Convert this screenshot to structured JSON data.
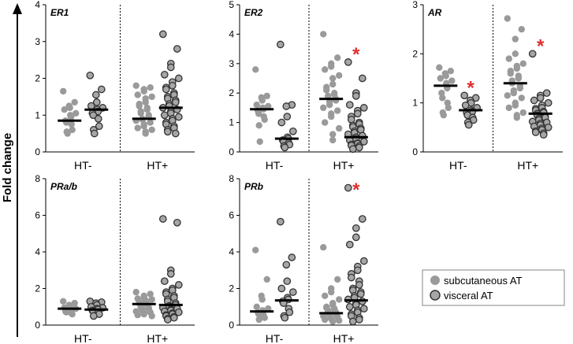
{
  "y_axis_title": "Fold change",
  "colors": {
    "subcutaneous_fill": "#9a9a9a",
    "visceral_fill": "#a6a6a6",
    "visceral_stroke": "#333333",
    "median": "#000000",
    "star": "#e03030"
  },
  "legend": [
    {
      "label": "subcutaneous AT",
      "kind": "subcutaneous"
    },
    {
      "label": "visceral AT",
      "kind": "visceral"
    }
  ],
  "chart_data": [
    {
      "type": "scatter",
      "title": "ER1",
      "ylim": [
        0,
        4
      ],
      "yticks": [
        0,
        1,
        2,
        3,
        4
      ],
      "groups": [
        "HT-",
        "HT+"
      ],
      "series": [
        {
          "group": "HT-",
          "tissue": "subcutaneous",
          "median": 0.85,
          "significant": false,
          "values": [
            1.65,
            1.35,
            1.25,
            1.2,
            1.15,
            1.05,
            1.0,
            0.95,
            0.85,
            0.8,
            0.75,
            0.6,
            0.55,
            0.5
          ]
        },
        {
          "group": "HT-",
          "tissue": "visceral",
          "median": 1.15,
          "significant": false,
          "values": [
            2.08,
            1.7,
            1.55,
            1.35,
            1.25,
            1.2,
            1.15,
            1.1,
            1.05,
            1.0,
            0.9,
            0.7,
            0.6,
            0.5
          ]
        },
        {
          "group": "HT+",
          "tissue": "subcutaneous",
          "median": 0.9,
          "significant": false,
          "values": [
            1.8,
            1.75,
            1.7,
            1.65,
            1.55,
            1.5,
            1.45,
            1.35,
            1.3,
            1.25,
            1.2,
            1.15,
            1.1,
            1.05,
            1.0,
            0.95,
            0.9,
            0.88,
            0.85,
            0.8,
            0.75,
            0.7,
            0.65,
            0.6,
            0.55,
            0.5
          ]
        },
        {
          "group": "HT+",
          "tissue": "visceral",
          "median": 1.2,
          "significant": false,
          "values": [
            3.2,
            2.8,
            2.4,
            2.3,
            2.1,
            2.0,
            1.9,
            1.8,
            1.75,
            1.7,
            1.6,
            1.55,
            1.5,
            1.45,
            1.4,
            1.35,
            1.3,
            1.25,
            1.2,
            1.15,
            1.1,
            1.05,
            1.0,
            0.95,
            0.9,
            0.85,
            0.8,
            0.75,
            0.7,
            0.65,
            0.6,
            0.55,
            0.5
          ]
        }
      ]
    },
    {
      "type": "scatter",
      "title": "ER2",
      "ylim": [
        0,
        5
      ],
      "yticks": [
        0,
        1,
        2,
        3,
        4,
        5
      ],
      "groups": [
        "HT-",
        "HT+"
      ],
      "series": [
        {
          "group": "HT-",
          "tissue": "subcutaneous",
          "median": 1.45,
          "significant": false,
          "values": [
            2.8,
            1.9,
            1.85,
            1.75,
            1.6,
            1.55,
            1.5,
            1.45,
            1.4,
            1.3,
            1.2,
            1.1,
            0.9,
            0.35
          ]
        },
        {
          "group": "HT-",
          "tissue": "visceral",
          "median": 0.45,
          "significant": false,
          "values": [
            3.65,
            1.6,
            1.55,
            1.2,
            1.0,
            0.7,
            0.5,
            0.45,
            0.4,
            0.35,
            0.3,
            0.25,
            0.2,
            0.15
          ]
        },
        {
          "group": "HT+",
          "tissue": "subcutaneous",
          "median": 1.8,
          "significant": false,
          "values": [
            4.0,
            3.2,
            3.0,
            2.9,
            2.8,
            2.6,
            2.5,
            2.3,
            2.2,
            2.1,
            2.0,
            1.95,
            1.9,
            1.85,
            1.8,
            1.75,
            1.7,
            1.6,
            1.5,
            1.4,
            1.3,
            1.2,
            1.0,
            0.8,
            0.6,
            0.4
          ]
        },
        {
          "group": "HT+",
          "tissue": "visceral",
          "median": 0.5,
          "significant": true,
          "values": [
            3.05,
            2.5,
            2.0,
            1.9,
            1.6,
            1.5,
            1.4,
            1.3,
            1.2,
            1.1,
            1.0,
            0.95,
            0.9,
            0.85,
            0.8,
            0.75,
            0.7,
            0.65,
            0.6,
            0.55,
            0.5,
            0.45,
            0.4,
            0.35,
            0.3,
            0.28,
            0.25,
            0.22,
            0.2,
            0.15,
            0.1
          ]
        }
      ]
    },
    {
      "type": "scatter",
      "title": "AR",
      "ylim": [
        0,
        3
      ],
      "yticks": [
        0,
        1,
        2,
        3
      ],
      "groups": [
        "HT-",
        "HT+"
      ],
      "series": [
        {
          "group": "HT-",
          "tissue": "subcutaneous",
          "median": 1.35,
          "significant": false,
          "values": [
            1.72,
            1.65,
            1.6,
            1.55,
            1.5,
            1.45,
            1.4,
            1.3,
            1.2,
            1.1,
            1.0,
            0.9,
            0.8,
            0.75
          ]
        },
        {
          "group": "HT-",
          "tissue": "visceral",
          "median": 0.85,
          "significant": true,
          "values": [
            1.15,
            1.1,
            1.05,
            1.0,
            0.95,
            0.9,
            0.85,
            0.82,
            0.8,
            0.75,
            0.7,
            0.65,
            0.6,
            0.55
          ]
        },
        {
          "group": "HT+",
          "tissue": "subcutaneous",
          "median": 1.4,
          "significant": false,
          "values": [
            2.72,
            2.5,
            2.3,
            2.0,
            1.9,
            1.8,
            1.75,
            1.7,
            1.65,
            1.6,
            1.55,
            1.5,
            1.45,
            1.4,
            1.35,
            1.3,
            1.25,
            1.2,
            1.15,
            1.1,
            1.0,
            0.95,
            0.9,
            0.8,
            0.75,
            0.7
          ]
        },
        {
          "group": "HT+",
          "tissue": "visceral",
          "median": 0.78,
          "significant": true,
          "values": [
            2.0,
            1.2,
            1.15,
            1.1,
            1.05,
            1.0,
            0.95,
            0.9,
            0.88,
            0.85,
            0.82,
            0.8,
            0.78,
            0.75,
            0.72,
            0.7,
            0.68,
            0.65,
            0.62,
            0.6,
            0.58,
            0.55,
            0.52,
            0.5,
            0.48,
            0.45,
            0.42,
            0.4,
            0.38,
            0.35
          ]
        }
      ]
    },
    {
      "type": "scatter",
      "title": "PRa/b",
      "ylim": [
        0,
        8
      ],
      "yticks": [
        0,
        2,
        4,
        6,
        8
      ],
      "groups": [
        "HT-",
        "HT+"
      ],
      "series": [
        {
          "group": "HT-",
          "tissue": "subcutaneous",
          "median": 0.9,
          "significant": false,
          "values": [
            1.3,
            1.2,
            1.1,
            1.0,
            0.95,
            0.9,
            0.85,
            0.8,
            0.75,
            0.7,
            0.65,
            0.6
          ]
        },
        {
          "group": "HT-",
          "tissue": "visceral",
          "median": 0.85,
          "significant": false,
          "values": [
            1.3,
            1.25,
            1.2,
            1.1,
            1.0,
            0.95,
            0.9,
            0.85,
            0.8,
            0.75,
            0.7,
            0.6,
            0.5
          ]
        },
        {
          "group": "HT+",
          "tissue": "subcutaneous",
          "median": 1.15,
          "significant": false,
          "values": [
            1.8,
            1.7,
            1.6,
            1.5,
            1.45,
            1.4,
            1.35,
            1.3,
            1.25,
            1.2,
            1.15,
            1.1,
            1.05,
            1.0,
            0.95,
            0.9,
            0.85,
            0.8,
            0.75,
            0.7,
            0.65,
            0.6,
            0.55,
            0.5
          ]
        },
        {
          "group": "HT+",
          "tissue": "visceral",
          "median": 1.1,
          "significant": false,
          "values": [
            5.8,
            5.6,
            3.0,
            2.8,
            2.4,
            2.2,
            2.0,
            1.9,
            1.8,
            1.7,
            1.6,
            1.5,
            1.4,
            1.3,
            1.2,
            1.1,
            1.05,
            1.0,
            0.95,
            0.9,
            0.85,
            0.8,
            0.75,
            0.7,
            0.65,
            0.6,
            0.55,
            0.5,
            0.45,
            0.4,
            0.35,
            0.3
          ]
        }
      ]
    },
    {
      "type": "scatter",
      "title": "PRb",
      "ylim": [
        0,
        8
      ],
      "yticks": [
        0,
        2,
        4,
        6,
        8
      ],
      "groups": [
        "HT-",
        "HT+"
      ],
      "series": [
        {
          "group": "HT-",
          "tissue": "subcutaneous",
          "median": 0.75,
          "significant": false,
          "values": [
            4.1,
            2.5,
            1.6,
            1.4,
            1.0,
            0.9,
            0.8,
            0.75,
            0.7,
            0.6,
            0.5,
            0.4,
            0.3
          ]
        },
        {
          "group": "HT-",
          "tissue": "visceral",
          "median": 1.35,
          "significant": false,
          "values": [
            5.65,
            3.7,
            3.3,
            2.4,
            2.0,
            1.8,
            1.5,
            1.4,
            1.3,
            1.2,
            0.9,
            0.7,
            0.5,
            0.4
          ]
        },
        {
          "group": "HT+",
          "tissue": "subcutaneous",
          "median": 0.65,
          "significant": false,
          "values": [
            4.25,
            2.5,
            2.0,
            1.8,
            1.6,
            1.4,
            1.2,
            1.1,
            1.0,
            0.95,
            0.9,
            0.85,
            0.8,
            0.75,
            0.7,
            0.65,
            0.6,
            0.55,
            0.5,
            0.45,
            0.4,
            0.35,
            0.3,
            0.25,
            0.2
          ]
        },
        {
          "group": "HT+",
          "tissue": "visceral",
          "median": 1.35,
          "significant": true,
          "values": [
            7.5,
            5.8,
            5.3,
            4.8,
            4.4,
            3.5,
            3.2,
            3.0,
            2.8,
            2.6,
            2.4,
            2.2,
            2.0,
            1.9,
            1.8,
            1.7,
            1.6,
            1.5,
            1.4,
            1.3,
            1.2,
            1.1,
            1.0,
            0.9,
            0.8,
            0.7,
            0.6,
            0.5,
            0.4,
            0.3,
            0.2
          ]
        }
      ]
    }
  ]
}
